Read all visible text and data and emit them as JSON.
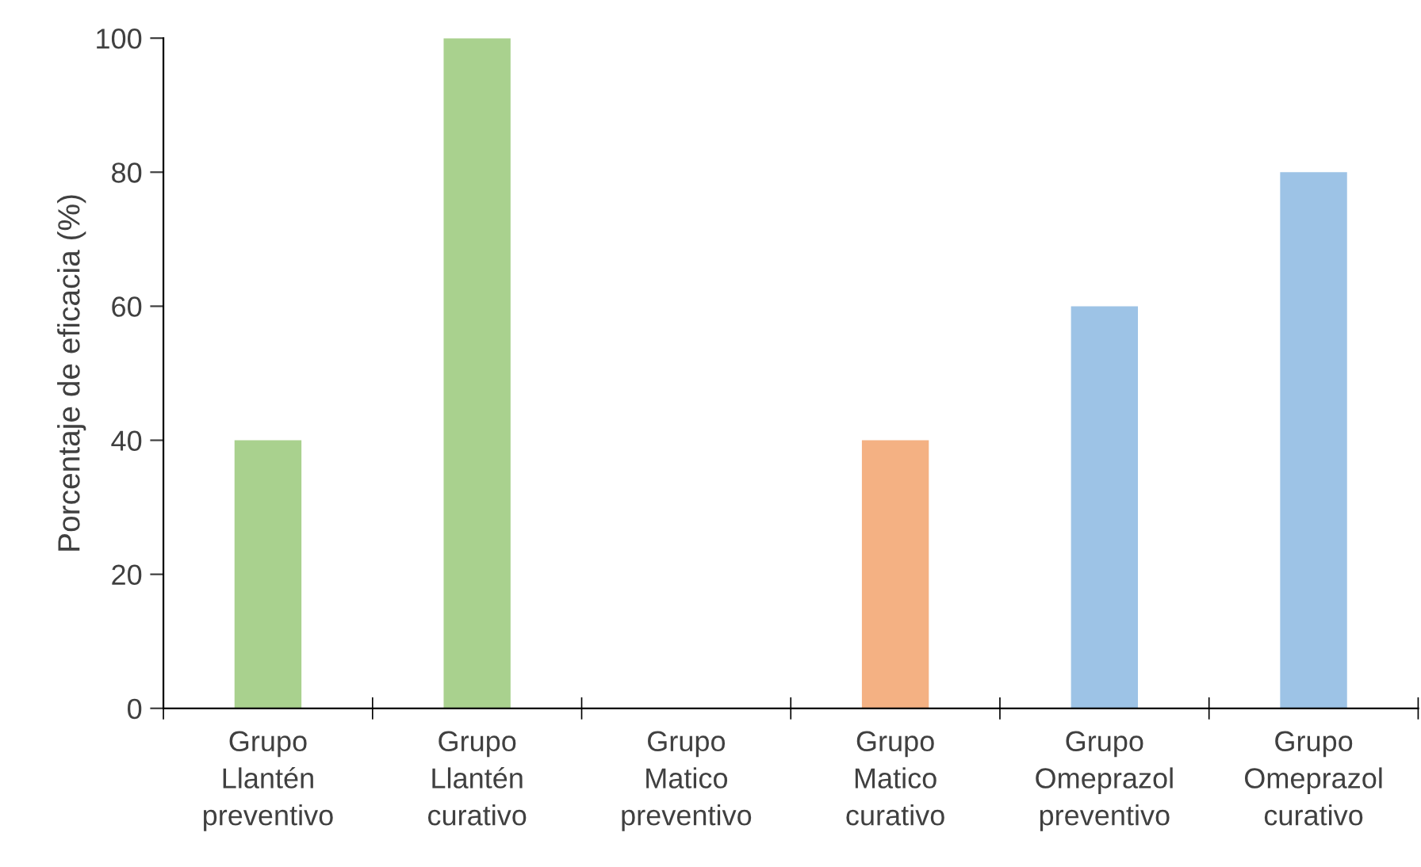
{
  "chart_data": {
    "type": "bar",
    "categories": [
      "Grupo\nLlantén\npreventivo",
      "Grupo\nLlantén\ncurativo",
      "Grupo\nMatico\npreventivo",
      "Grupo\nMatico\ncurativo",
      "Grupo\nOmeprazol\npreventivo",
      "Grupo\nOmeprazol\ncurativo"
    ],
    "values": [
      40,
      100,
      0,
      40,
      60,
      80
    ],
    "colors": [
      "#a9d18e",
      "#a9d18e",
      "#a9d18e",
      "#f4b183",
      "#9dc3e6",
      "#9dc3e6"
    ],
    "ylabel": "Porcentaje de eficacia (%)",
    "ylim": [
      0,
      100
    ],
    "yticks": [
      0,
      20,
      40,
      60,
      80,
      100
    ],
    "grid": false,
    "legend": false
  }
}
